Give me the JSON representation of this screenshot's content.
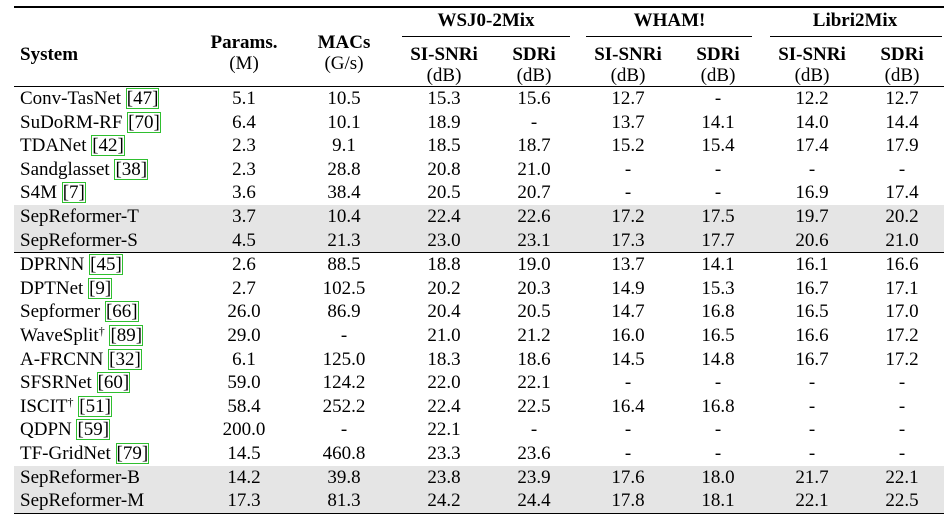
{
  "header": {
    "system": "System",
    "params": "Params.",
    "params_unit": "(M)",
    "macs": "MACs",
    "macs_unit": "(G/s)",
    "groups": [
      "WSJ0-2Mix",
      "WHAM!",
      "Libri2Mix"
    ],
    "metric_sisnr": "SI-SNRi",
    "metric_sdr": "SDRi",
    "unit_db": "(dB)"
  },
  "sections": [
    {
      "rows": [
        {
          "name": "Conv-TasNet",
          "ref": "[47]",
          "params": "5.1",
          "macs": "10.5",
          "vals": [
            "15.3",
            "15.6",
            "12.7",
            "-",
            "12.2",
            "12.7"
          ]
        },
        {
          "name": "SuDoRM-RF",
          "ref": "[70]",
          "params": "6.4",
          "macs": "10.1",
          "vals": [
            "18.9",
            "-",
            "13.7",
            "14.1",
            "14.0",
            "14.4"
          ]
        },
        {
          "name": "TDANet",
          "ref": "[42]",
          "params": "2.3",
          "macs": "9.1",
          "vals": [
            "18.5",
            "18.7",
            "15.2",
            "15.4",
            "17.4",
            "17.9"
          ]
        },
        {
          "name": "Sandglasset",
          "ref": "[38]",
          "params": "2.3",
          "macs": "28.8",
          "vals": [
            "20.8",
            "21.0",
            "-",
            "-",
            "-",
            "-"
          ]
        },
        {
          "name": "S4M",
          "ref": "[7]",
          "params": "3.6",
          "macs": "38.4",
          "vals": [
            "20.5",
            "20.7",
            "-",
            "-",
            "16.9",
            "17.4"
          ]
        },
        {
          "name": "SepReformer-T",
          "ref": "",
          "params": "3.7",
          "macs": "10.4",
          "vals": [
            "22.4",
            "22.6",
            "17.2",
            "17.5",
            "19.7",
            "20.2"
          ],
          "highlight": true
        },
        {
          "name": "SepReformer-S",
          "ref": "",
          "params": "4.5",
          "macs": "21.3",
          "vals": [
            "23.0",
            "23.1",
            "17.3",
            "17.7",
            "20.6",
            "21.0"
          ],
          "highlight": true
        }
      ]
    },
    {
      "rows": [
        {
          "name": "DPRNN",
          "ref": "[45]",
          "params": "2.6",
          "macs": "88.5",
          "vals": [
            "18.8",
            "19.0",
            "13.7",
            "14.1",
            "16.1",
            "16.6"
          ]
        },
        {
          "name": "DPTNet",
          "ref": "[9]",
          "params": "2.7",
          "macs": "102.5",
          "vals": [
            "20.2",
            "20.3",
            "14.9",
            "15.3",
            "16.7",
            "17.1"
          ]
        },
        {
          "name": "Sepformer",
          "ref": "[66]",
          "params": "26.0",
          "macs": "86.9",
          "vals": [
            "20.4",
            "20.5",
            "14.7",
            "16.8",
            "16.5",
            "17.0"
          ]
        },
        {
          "name": "WaveSplit",
          "dagger": "†",
          "ref": "[89]",
          "params": "29.0",
          "macs": "-",
          "vals": [
            "21.0",
            "21.2",
            "16.0",
            "16.5",
            "16.6",
            "17.2"
          ]
        },
        {
          "name": "A-FRCNN",
          "ref": "[32]",
          "params": "6.1",
          "macs": "125.0",
          "vals": [
            "18.3",
            "18.6",
            "14.5",
            "14.8",
            "16.7",
            "17.2"
          ]
        },
        {
          "name": "SFSRNet",
          "ref": "[60]",
          "params": "59.0",
          "macs": "124.2",
          "vals": [
            "22.0",
            "22.1",
            "-",
            "-",
            "-",
            "-"
          ]
        },
        {
          "name": "ISCIT",
          "dagger": "†",
          "ref": "[51]",
          "params": "58.4",
          "macs": "252.2",
          "vals": [
            "22.4",
            "22.5",
            "16.4",
            "16.8",
            "-",
            "-"
          ]
        },
        {
          "name": "QDPN",
          "ref": "[59]",
          "params": "200.0",
          "macs": "-",
          "vals": [
            "22.1",
            "-",
            "-",
            "-",
            "-",
            "-"
          ]
        },
        {
          "name": "TF-GridNet",
          "ref": "[79]",
          "params": "14.5",
          "macs": "460.8",
          "vals": [
            "23.3",
            "23.6",
            "-",
            "-",
            "-",
            "-"
          ]
        },
        {
          "name": "SepReformer-B",
          "ref": "",
          "params": "14.2",
          "macs": "39.8",
          "vals": [
            "23.8",
            "23.9",
            "17.6",
            "18.0",
            "21.7",
            "22.1"
          ],
          "highlight": true
        },
        {
          "name": "SepReformer-M",
          "ref": "",
          "params": "17.3",
          "macs": "81.3",
          "vals": [
            "24.2",
            "24.4",
            "17.8",
            "18.1",
            "22.1",
            "22.5"
          ],
          "highlight": true
        }
      ]
    }
  ]
}
